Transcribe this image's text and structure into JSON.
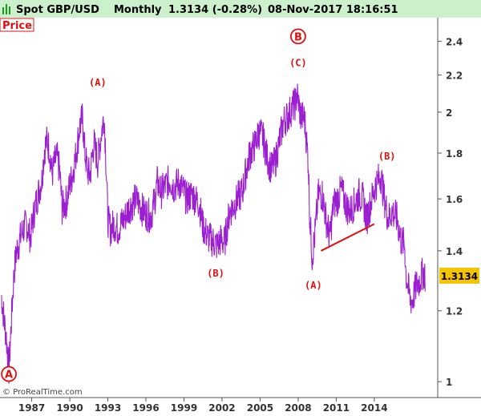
{
  "header": {
    "title": "Spot GBP/USD",
    "interval": "Monthly",
    "last_value": "1.3134 (-0.28%)",
    "datetime": "08-Nov-2017 18:16:51",
    "panel_label": "Price"
  },
  "copyright": "© ProRealTime.com",
  "colors": {
    "price": "#9b1fd0",
    "annotation": "#e01010",
    "last_badge": "#f5c400",
    "header_bg": "#ccf0cc"
  },
  "chart_data": {
    "type": "line",
    "yscale": "log",
    "xlim": [
      1984.5,
      2019.0
    ],
    "ylim": [
      0.96,
      2.55
    ],
    "x_ticks": [
      "1987",
      "1990",
      "1993",
      "1996",
      "1999",
      "2002",
      "2005",
      "2008",
      "2011",
      "2014"
    ],
    "y_ticks": [
      "1",
      "1.2",
      "1.4",
      "1.6",
      "1.8",
      "2",
      "2.2",
      "2.4"
    ],
    "last_label": "1.3134",
    "last_value": 1.3134,
    "series": [
      {
        "points": [
          [
            1984.6,
            1.25
          ],
          [
            1984.8,
            1.18
          ],
          [
            1985.0,
            1.12
          ],
          [
            1985.2,
            1.03
          ],
          [
            1985.4,
            1.17
          ],
          [
            1985.6,
            1.32
          ],
          [
            1985.8,
            1.4
          ],
          [
            1986.0,
            1.43
          ],
          [
            1986.3,
            1.48
          ],
          [
            1986.6,
            1.5
          ],
          [
            1986.9,
            1.45
          ],
          [
            1987.2,
            1.55
          ],
          [
            1987.5,
            1.62
          ],
          [
            1987.8,
            1.68
          ],
          [
            1988.0,
            1.82
          ],
          [
            1988.2,
            1.86
          ],
          [
            1988.4,
            1.82
          ],
          [
            1988.6,
            1.7
          ],
          [
            1988.8,
            1.76
          ],
          [
            1989.0,
            1.78
          ],
          [
            1989.2,
            1.72
          ],
          [
            1989.4,
            1.56
          ],
          [
            1989.6,
            1.58
          ],
          [
            1989.8,
            1.6
          ],
          [
            1990.0,
            1.66
          ],
          [
            1990.2,
            1.7
          ],
          [
            1990.5,
            1.8
          ],
          [
            1990.8,
            1.93
          ],
          [
            1991.0,
            1.97
          ],
          [
            1991.2,
            1.8
          ],
          [
            1991.4,
            1.72
          ],
          [
            1991.6,
            1.7
          ],
          [
            1991.9,
            1.85
          ],
          [
            1992.2,
            1.76
          ],
          [
            1992.5,
            1.9
          ],
          [
            1992.7,
            1.98
          ],
          [
            1992.8,
            1.85
          ],
          [
            1993.0,
            1.52
          ],
          [
            1993.2,
            1.48
          ],
          [
            1993.5,
            1.5
          ],
          [
            1993.8,
            1.48
          ],
          [
            1994.0,
            1.5
          ],
          [
            1994.3,
            1.52
          ],
          [
            1994.6,
            1.56
          ],
          [
            1994.9,
            1.58
          ],
          [
            1995.2,
            1.6
          ],
          [
            1995.5,
            1.58
          ],
          [
            1995.8,
            1.55
          ],
          [
            1996.1,
            1.54
          ],
          [
            1996.4,
            1.53
          ],
          [
            1996.7,
            1.6
          ],
          [
            1996.9,
            1.67
          ],
          [
            1997.2,
            1.63
          ],
          [
            1997.6,
            1.66
          ],
          [
            1997.9,
            1.68
          ],
          [
            1998.2,
            1.65
          ],
          [
            1998.6,
            1.67
          ],
          [
            1998.9,
            1.64
          ],
          [
            1999.2,
            1.6
          ],
          [
            1999.6,
            1.62
          ],
          [
            1999.9,
            1.6
          ],
          [
            2000.2,
            1.58
          ],
          [
            2000.5,
            1.49
          ],
          [
            2000.9,
            1.45
          ],
          [
            2001.2,
            1.44
          ],
          [
            2001.6,
            1.42
          ],
          [
            2001.9,
            1.44
          ],
          [
            2002.2,
            1.43
          ],
          [
            2002.6,
            1.55
          ],
          [
            2002.9,
            1.57
          ],
          [
            2003.2,
            1.6
          ],
          [
            2003.6,
            1.63
          ],
          [
            2003.9,
            1.72
          ],
          [
            2004.2,
            1.8
          ],
          [
            2004.6,
            1.84
          ],
          [
            2004.9,
            1.9
          ],
          [
            2005.2,
            1.88
          ],
          [
            2005.6,
            1.77
          ],
          [
            2005.9,
            1.73
          ],
          [
            2006.2,
            1.76
          ],
          [
            2006.6,
            1.88
          ],
          [
            2006.9,
            1.96
          ],
          [
            2007.2,
            1.98
          ],
          [
            2007.5,
            2.02
          ],
          [
            2007.8,
            2.05
          ],
          [
            2007.9,
            2.1
          ],
          [
            2008.2,
            1.98
          ],
          [
            2008.5,
            1.97
          ],
          [
            2008.8,
            1.76
          ],
          [
            2008.9,
            1.55
          ],
          [
            2009.1,
            1.38
          ],
          [
            2009.3,
            1.45
          ],
          [
            2009.6,
            1.62
          ],
          [
            2009.9,
            1.62
          ],
          [
            2010.2,
            1.52
          ],
          [
            2010.5,
            1.45
          ],
          [
            2010.8,
            1.58
          ],
          [
            2011.1,
            1.6
          ],
          [
            2011.4,
            1.64
          ],
          [
            2011.8,
            1.57
          ],
          [
            2012.1,
            1.55
          ],
          [
            2012.4,
            1.58
          ],
          [
            2012.8,
            1.62
          ],
          [
            2013.1,
            1.6
          ],
          [
            2013.4,
            1.52
          ],
          [
            2013.8,
            1.6
          ],
          [
            2014.1,
            1.66
          ],
          [
            2014.5,
            1.7
          ],
          [
            2014.8,
            1.6
          ],
          [
            2015.1,
            1.52
          ],
          [
            2015.4,
            1.55
          ],
          [
            2015.8,
            1.52
          ],
          [
            2016.1,
            1.44
          ],
          [
            2016.4,
            1.42
          ],
          [
            2016.5,
            1.32
          ],
          [
            2016.8,
            1.24
          ],
          [
            2017.0,
            1.23
          ],
          [
            2017.3,
            1.28
          ],
          [
            2017.6,
            1.3
          ],
          [
            2017.9,
            1.33
          ],
          [
            2018.0,
            1.3134
          ]
        ]
      }
    ],
    "annotations": [
      {
        "label": "(A)",
        "x": 1992.2,
        "y": 2.14
      },
      {
        "label": "(C)",
        "x": 2008.0,
        "y": 2.25
      },
      {
        "label": "(B)",
        "x": 2001.5,
        "y": 1.31
      },
      {
        "label": "(A)",
        "x": 2009.2,
        "y": 1.27
      },
      {
        "label": "(B)",
        "x": 2015.0,
        "y": 1.77
      }
    ],
    "circled_annotations": [
      {
        "label": "B",
        "x": 2008.0,
        "y": 2.43
      },
      {
        "label": "A",
        "x": 1985.2,
        "y": 1.02
      }
    ],
    "trendline": {
      "from": [
        2009.8,
        1.4
      ],
      "to": [
        2014.0,
        1.5
      ]
    }
  }
}
